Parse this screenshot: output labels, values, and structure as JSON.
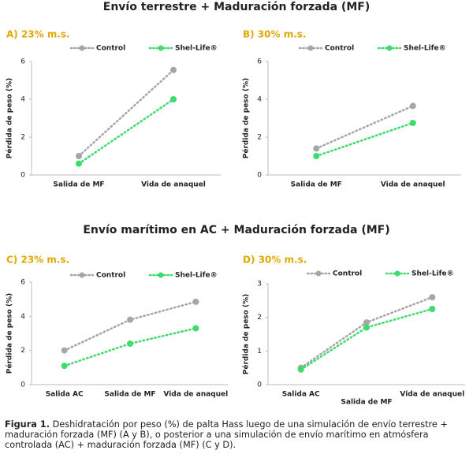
{
  "sections": [
    {
      "title": "Envío terrestre + Maduración forzada (MF)"
    },
    {
      "title": "Envío marítimo en AC + Maduración forzada (MF)"
    }
  ],
  "caption": {
    "label": "Figura 1.",
    "text": "Deshidratación por peso (%) de palta Hass luego de una simulación de envío terrestre + maduración forzada (MF) (A y B), o posterior a una simulación de envío marítimo en atmósfera controlada (AC) + maduración forzada (MF) (C y D)."
  },
  "chart_data": [
    {
      "type": "line",
      "title": "A) 23% m.s.",
      "y_label": "Pérdida de peso (%)",
      "categories": [
        "Salida de MF",
        "Vida de anaquel"
      ],
      "series": [
        {
          "name": "Control",
          "color": "#a6a6a6",
          "values": [
            1.0,
            5.55
          ]
        },
        {
          "name": "Shel-Life®",
          "color": "#3ddc6e",
          "values": [
            0.6,
            4.0
          ]
        }
      ],
      "ylim": [
        0,
        6
      ],
      "yticks": [
        0,
        2,
        4,
        6
      ]
    },
    {
      "type": "line",
      "title": "B) 30% m.s.",
      "y_label": "Pérdida de peso (%)",
      "categories": [
        "Salida de MF",
        "Vida de anaquel"
      ],
      "series": [
        {
          "name": "Control",
          "color": "#a6a6a6",
          "values": [
            1.4,
            3.65
          ]
        },
        {
          "name": "Shel-Life®",
          "color": "#3ddc6e",
          "values": [
            1.0,
            2.75
          ]
        }
      ],
      "ylim": [
        0,
        6
      ],
      "yticks": [
        0,
        2,
        4,
        6
      ]
    },
    {
      "type": "line",
      "title": "C) 23% m.s.",
      "y_label": "Pérdida de peso (%)",
      "categories": [
        "Salida AC",
        "Salida de MF",
        "Vida de anaquel"
      ],
      "series": [
        {
          "name": "Control",
          "color": "#a6a6a6",
          "values": [
            2.0,
            3.8,
            4.85
          ]
        },
        {
          "name": "Shel-Life®",
          "color": "#3ddc6e",
          "values": [
            1.1,
            2.4,
            3.3
          ]
        }
      ],
      "ylim": [
        0,
        6
      ],
      "yticks": [
        0,
        2,
        4,
        6
      ]
    },
    {
      "type": "line",
      "title": "D) 30% m.s.",
      "y_label": "Pérdida de peso (%)",
      "categories": [
        "Salida AC",
        "Salida de MF",
        "Vida de anaquel"
      ],
      "series": [
        {
          "name": "Control",
          "color": "#a6a6a6",
          "values": [
            0.5,
            1.85,
            2.6
          ]
        },
        {
          "name": "Shel-Life®",
          "color": "#3ddc6e",
          "values": [
            0.45,
            1.7,
            2.25
          ]
        }
      ],
      "ylim": [
        0,
        3
      ],
      "yticks": [
        0,
        1,
        2,
        3
      ]
    }
  ]
}
